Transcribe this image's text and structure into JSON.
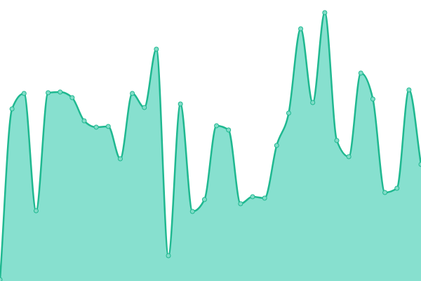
{
  "chart_data": {
    "type": "area",
    "categories": [
      null,
      null,
      null,
      null,
      null,
      null,
      null,
      null,
      null,
      null,
      null,
      null,
      null,
      null,
      null,
      null,
      null,
      null,
      null,
      null,
      null,
      null,
      null,
      null,
      null,
      null,
      null,
      null,
      null,
      null,
      null,
      null,
      null,
      null,
      null,
      null
    ],
    "values": [
      2,
      245,
      267,
      100,
      268,
      269,
      261,
      228,
      219,
      220,
      174,
      267,
      247,
      330,
      36,
      252,
      99,
      116,
      221,
      215,
      110,
      120,
      118,
      193,
      239,
      359,
      254,
      382,
      200,
      177,
      296,
      259,
      126,
      132,
      272,
      166
    ],
    "ylim": [
      0,
      400
    ],
    "color": "#1fb890",
    "fill": "#87e0cf",
    "point_fill": "#80dcc7"
  }
}
